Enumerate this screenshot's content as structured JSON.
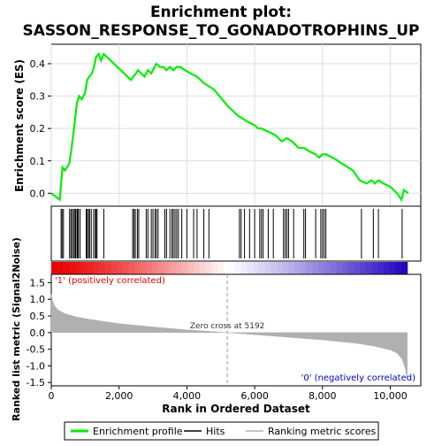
{
  "chart_data": {
    "type": "line",
    "title_line1": "Enrichment plot:",
    "title_line2": "SASSON_RESPONSE_TO_GONADOTROPHINS_UP",
    "top_panel": {
      "ylabel": "Enrichment score (ES)",
      "ylim": [
        -0.04,
        0.46
      ],
      "yticks": [
        0.0,
        0.1,
        0.2,
        0.3,
        0.4
      ],
      "ytick_labels": [
        "0.0",
        "0.1",
        "0.2",
        "0.3",
        "0.4"
      ],
      "grid": true,
      "series_color": "#00ee00",
      "es_x": [
        0,
        250,
        330,
        400,
        530,
        600,
        660,
        760,
        820,
        900,
        1000,
        1060,
        1120,
        1200,
        1260,
        1320,
        1400,
        1470,
        1550,
        2350,
        2420,
        2500,
        2560,
        2650,
        2750,
        2850,
        2950,
        3050,
        3100,
        3200,
        3300,
        3400,
        3500,
        3600,
        3700,
        3800,
        3950,
        4100,
        4300,
        4500,
        4800,
        5200,
        5500,
        5800,
        6000,
        6100,
        6200,
        6400,
        6600,
        6800,
        6950,
        7100,
        7300,
        7450,
        7600,
        7800,
        7900,
        8000,
        8100,
        8300,
        8600,
        8900,
        9100,
        9300,
        9450,
        9550,
        9650,
        9800,
        10000,
        10200,
        10330,
        10400,
        10530
      ],
      "es_y": [
        0.0,
        -0.02,
        0.08,
        0.07,
        0.09,
        0.14,
        0.19,
        0.28,
        0.3,
        0.29,
        0.31,
        0.35,
        0.36,
        0.37,
        0.39,
        0.42,
        0.43,
        0.41,
        0.43,
        0.35,
        0.36,
        0.37,
        0.38,
        0.37,
        0.36,
        0.38,
        0.37,
        0.39,
        0.4,
        0.39,
        0.39,
        0.38,
        0.39,
        0.38,
        0.39,
        0.39,
        0.38,
        0.37,
        0.36,
        0.34,
        0.32,
        0.27,
        0.24,
        0.22,
        0.21,
        0.2,
        0.2,
        0.19,
        0.18,
        0.16,
        0.17,
        0.16,
        0.14,
        0.14,
        0.13,
        0.12,
        0.11,
        0.12,
        0.12,
        0.11,
        0.09,
        0.07,
        0.04,
        0.03,
        0.04,
        0.03,
        0.04,
        0.03,
        0.02,
        0.0,
        -0.02,
        0.01,
        0.0
      ]
    },
    "hits_x": [
      290,
      320,
      360,
      540,
      580,
      620,
      660,
      700,
      720,
      760,
      780,
      800,
      850,
      1030,
      1060,
      1100,
      1130,
      1180,
      1250,
      1300,
      1320,
      1350,
      1550,
      2400,
      2440,
      2480,
      2540,
      2580,
      2800,
      2850,
      2950,
      3000,
      3060,
      3100,
      3150,
      3350,
      3400,
      3500,
      3560,
      3600,
      3650,
      3700,
      3750,
      3850,
      4000,
      4200,
      4300,
      4500,
      4650,
      5550,
      5600,
      5700,
      5850,
      6000,
      6150,
      6200,
      6250,
      6400,
      6550,
      6850,
      6900,
      6950,
      7000,
      7150,
      7450,
      7500,
      7800,
      7950,
      8000,
      8050,
      8100,
      9150,
      9500,
      9650,
      10350
    ],
    "ranking_panel": {
      "ylabel": "Ranked list metric (Signal2Noise)",
      "ylim": [
        -1.6,
        1.75
      ],
      "yticks": [
        -1.5,
        -1.0,
        -0.5,
        0.0,
        0.5,
        1.0,
        1.5
      ],
      "ytick_labels": [
        "-1.5",
        "-1.0",
        "-0.5",
        "0.0",
        "0.5",
        "1.0",
        "1.5"
      ],
      "metric_x": [
        0,
        40,
        100,
        200,
        400,
        700,
        1000,
        1500,
        2000,
        3000,
        4000,
        5192,
        6000,
        7000,
        8000,
        9000,
        9500,
        10000,
        10200,
        10350,
        10450,
        10500
      ],
      "metric_y": [
        1.15,
        0.95,
        0.8,
        0.68,
        0.57,
        0.48,
        0.42,
        0.34,
        0.27,
        0.17,
        0.08,
        0.0,
        -0.06,
        -0.14,
        -0.22,
        -0.32,
        -0.4,
        -0.52,
        -0.62,
        -0.8,
        -1.1,
        -1.4
      ],
      "bar_color": "#b0b0b0"
    },
    "xlabel": "Rank in Ordered Dataset",
    "xlim": [
      0,
      10900
    ],
    "xticks": [
      0,
      2000,
      4000,
      6000,
      8000,
      10000
    ],
    "xtick_labels": [
      "0",
      "2,000",
      "4,000",
      "6,000",
      "8,000",
      "10,000"
    ],
    "n_genes": 10500,
    "zero_cross": 5192,
    "zero_cross_label": "Zero cross at 5192",
    "positive_label": "'1' (positively correlated)",
    "negative_label": "'0' (negatively correlated)",
    "positive_color": "#ee0000",
    "negative_color": "#0000cc",
    "legend": {
      "placement": "bottom",
      "items": [
        {
          "label": "Enrichment profile",
          "color": "#00ee00",
          "kind": "line"
        },
        {
          "label": "Hits",
          "color": "#000000",
          "kind": "line"
        },
        {
          "label": "Ranking metric scores",
          "color": "#b0b0b0",
          "kind": "line"
        }
      ]
    }
  }
}
